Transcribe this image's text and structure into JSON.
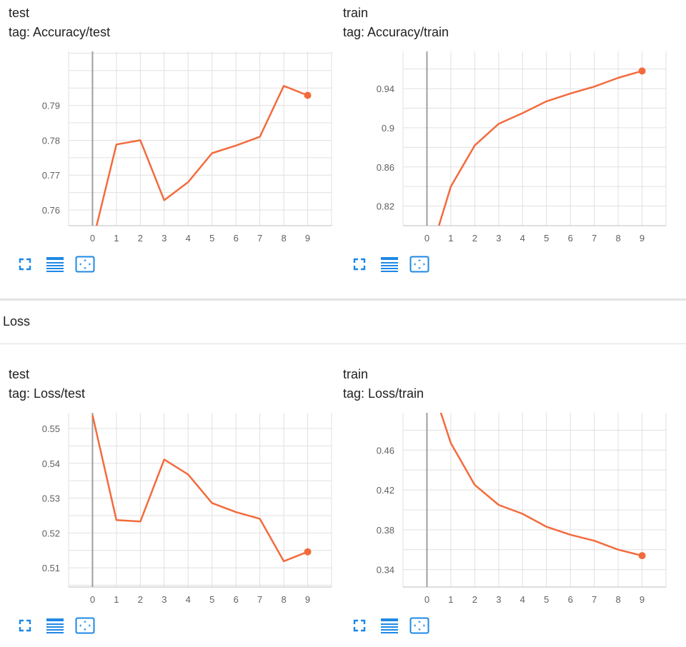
{
  "groups": {
    "loss_title": "Loss"
  },
  "icons": {
    "expand": "expand-icon",
    "data_table": "data-table-icon",
    "fit_domain": "fit-domain-icon"
  },
  "colors": {
    "series": "#f36b3d",
    "grid": "#e0e0e0",
    "axis_zero": "#9e9e9e",
    "icon": "#1e88e5"
  },
  "chart_data": [
    {
      "type": "line",
      "title": "test",
      "tag": "tag: Accuracy/test",
      "x": [
        0,
        1,
        2,
        3,
        4,
        5,
        6,
        7,
        8,
        9
      ],
      "x_ticks": [
        "0",
        "1",
        "2",
        "3",
        "4",
        "5",
        "6",
        "7",
        "8",
        "9"
      ],
      "y_ticks": [
        "0.76",
        "0.77",
        "0.78",
        "0.79"
      ],
      "y_tick_values": [
        0.76,
        0.77,
        0.78,
        0.79
      ],
      "series": [
        {
          "values": [
            0.7507,
            0.7788,
            0.78,
            0.7628,
            0.768,
            0.7763,
            0.7785,
            0.781,
            0.7956,
            0.7929
          ]
        }
      ],
      "xlim": [
        -1,
        10
      ],
      "ylim": [
        0.7555,
        0.8055
      ],
      "grid": true
    },
    {
      "type": "line",
      "title": "train",
      "tag": "tag: Accuracy/train",
      "x": [
        0,
        1,
        2,
        3,
        4,
        5,
        6,
        7,
        8,
        9
      ],
      "x_ticks": [
        "0",
        "1",
        "2",
        "3",
        "4",
        "5",
        "6",
        "7",
        "8",
        "9"
      ],
      "y_ticks": [
        "0.82",
        "0.86",
        "0.9",
        "0.94"
      ],
      "y_tick_values": [
        0.82,
        0.86,
        0.9,
        0.94
      ],
      "series": [
        {
          "values": [
            0.76,
            0.84,
            0.882,
            0.904,
            0.915,
            0.927,
            0.935,
            0.942,
            0.951,
            0.958
          ]
        }
      ],
      "xlim": [
        -1,
        10
      ],
      "ylim": [
        0.8,
        0.978
      ],
      "grid": true
    },
    {
      "type": "line",
      "title": "test",
      "tag": "tag: Loss/test",
      "x": [
        0,
        1,
        2,
        3,
        4,
        5,
        6,
        7,
        8,
        9
      ],
      "x_ticks": [
        "0",
        "1",
        "2",
        "3",
        "4",
        "5",
        "6",
        "7",
        "8",
        "9"
      ],
      "y_ticks": [
        "0.51",
        "0.52",
        "0.53",
        "0.54",
        "0.55"
      ],
      "y_tick_values": [
        0.51,
        0.52,
        0.53,
        0.54,
        0.55
      ],
      "series": [
        {
          "values": [
            0.5538,
            0.5237,
            0.5233,
            0.5411,
            0.5368,
            0.5286,
            0.526,
            0.5241,
            0.5119,
            0.5146
          ]
        }
      ],
      "xlim": [
        -1,
        10
      ],
      "ylim": [
        0.5045,
        0.5545
      ],
      "grid": true
    },
    {
      "type": "line",
      "title": "train",
      "tag": "tag: Loss/train",
      "x": [
        0,
        1,
        2,
        3,
        4,
        5,
        6,
        7,
        8,
        9
      ],
      "x_ticks": [
        "0",
        "1",
        "2",
        "3",
        "4",
        "5",
        "6",
        "7",
        "8",
        "9"
      ],
      "y_ticks": [
        "0.34",
        "0.38",
        "0.42",
        "0.46"
      ],
      "y_tick_values": [
        0.34,
        0.38,
        0.42,
        0.46
      ],
      "series": [
        {
          "values": [
            0.54,
            0.467,
            0.425,
            0.405,
            0.396,
            0.383,
            0.375,
            0.369,
            0.36,
            0.354
          ]
        }
      ],
      "xlim": [
        -1,
        10
      ],
      "ylim": [
        0.3225,
        0.4975
      ],
      "grid": true
    }
  ]
}
